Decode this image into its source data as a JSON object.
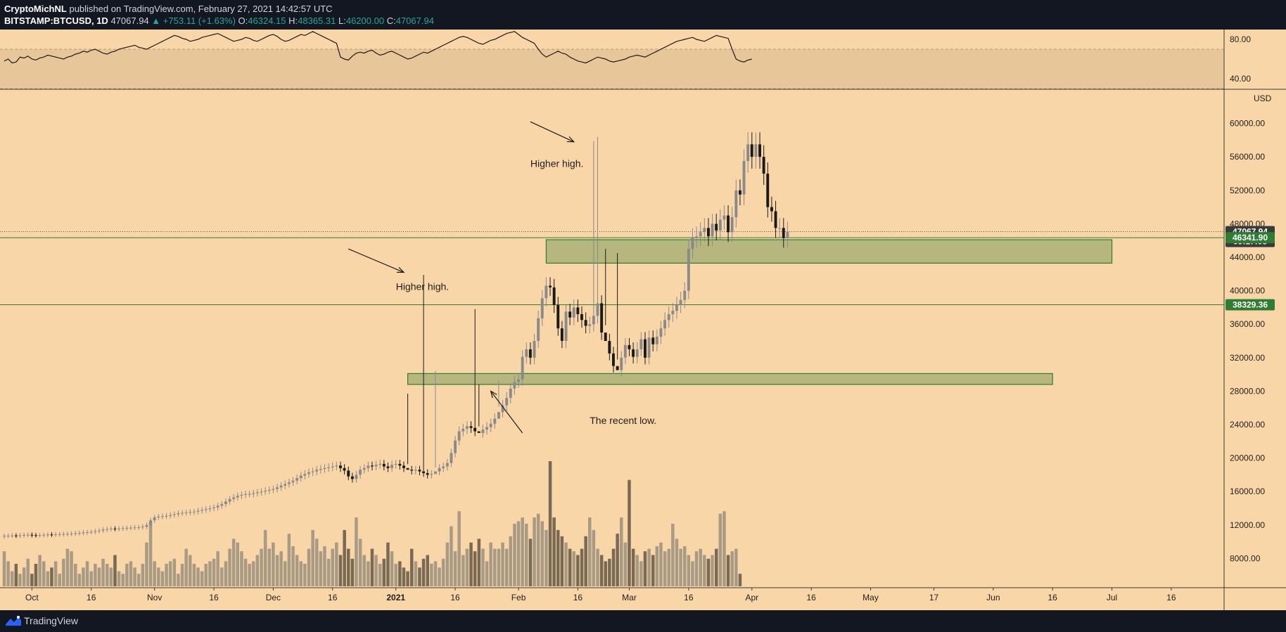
{
  "header": {
    "author": "CryptoMichNL",
    "published_text": "published on TradingView.com, February 27, 2021 14:42:57 UTC",
    "symbol": "BITSTAMP:BTCUSD, 1D",
    "last": "47067.94",
    "change": "+753.11 (+1.63%)",
    "o_label": "O:",
    "o_value": "46324.15",
    "h_label": "H:",
    "h_value": "48365.31",
    "l_label": "L:",
    "l_value": "46200.00",
    "c_label": "C:",
    "c_value": "47067.94"
  },
  "footer": {
    "brand": "TradingView"
  },
  "colors": {
    "background": "#f8d6a7",
    "rsi_band": "#e7c69a",
    "zone_fill": "#b5b77e",
    "zone_border": "#2e7d32",
    "candle_up": "#8a8a8a",
    "candle_down": "#1a1a1a",
    "volume": "#7a6a55",
    "price_tag_green": "#2e7d32",
    "price_tag_dark": "#3a3a3a"
  },
  "chart_data": {
    "type": "candlestick",
    "symbol": "BITSTAMP:BTCUSD",
    "interval": "1D",
    "currency": "USD",
    "ylim": [
      4500,
      64000
    ],
    "y_ticks": [
      8000,
      12000,
      16000,
      20000,
      24000,
      28000,
      32000,
      36000,
      40000,
      44000,
      48000,
      52000,
      56000,
      60000
    ],
    "y_tick_labels": [
      "8000.00",
      "12000.00",
      "16000.00",
      "20000.00",
      "24000.00",
      "28000.00",
      "32000.00",
      "36000.00",
      "40000.00",
      "44000.00",
      "48000.00",
      "52000.00",
      "56000.00",
      "60000.00"
    ],
    "x_range": [
      "2020-09-24",
      "2021-07-29"
    ],
    "x_ticks": [
      {
        "date": "2020-10-01",
        "label": "Oct"
      },
      {
        "date": "2020-10-16",
        "label": "16"
      },
      {
        "date": "2020-11-01",
        "label": "Nov"
      },
      {
        "date": "2020-11-16",
        "label": "16"
      },
      {
        "date": "2020-12-01",
        "label": "Dec"
      },
      {
        "date": "2020-12-16",
        "label": "16"
      },
      {
        "date": "2021-01-01",
        "label": "2021"
      },
      {
        "date": "2021-01-16",
        "label": "16"
      },
      {
        "date": "2021-02-01",
        "label": "Feb"
      },
      {
        "date": "2021-02-16",
        "label": "16"
      },
      {
        "date": "2021-03-01",
        "label": "Mar"
      },
      {
        "date": "2021-03-16",
        "label": "16"
      },
      {
        "date": "2021-04-01",
        "label": "Apr"
      },
      {
        "date": "2021-04-16",
        "label": "16"
      },
      {
        "date": "2021-05-01",
        "label": "May"
      },
      {
        "date": "2021-05-17",
        "label": "17"
      },
      {
        "date": "2021-06-01",
        "label": "Jun"
      },
      {
        "date": "2021-06-16",
        "label": "16"
      },
      {
        "date": "2021-07-01",
        "label": "Jul"
      },
      {
        "date": "2021-07-16",
        "label": "16"
      }
    ],
    "price_series": {
      "start_date": "2020-09-24",
      "interval_days": 1,
      "close": [
        10700,
        10720,
        10740,
        10710,
        10760,
        10800,
        10830,
        10780,
        10760,
        10790,
        10820,
        10860,
        10850,
        10880,
        10890,
        10920,
        10940,
        10960,
        11010,
        11050,
        11100,
        11150,
        11180,
        11260,
        11340,
        11460,
        11510,
        11560,
        11520,
        11580,
        11600,
        11650,
        11680,
        11710,
        11730,
        11800,
        12000,
        12550,
        12900,
        13000,
        13050,
        13100,
        13200,
        13280,
        13400,
        13450,
        13500,
        13550,
        13600,
        13700,
        13800,
        13900,
        14000,
        14100,
        14300,
        14500,
        14800,
        15100,
        15300,
        15500,
        15600,
        15700,
        15700,
        15800,
        15900,
        16000,
        16100,
        16200,
        16300,
        16500,
        16700,
        16900,
        17100,
        17300,
        17600,
        17900,
        18100,
        18300,
        18400,
        18600,
        18700,
        18800,
        18900,
        19000,
        19100,
        18800,
        18500,
        17800,
        17500,
        18000,
        18600,
        18800,
        19100,
        19000,
        19200,
        19300,
        19000,
        18800,
        19200,
        19300,
        19100,
        18800,
        18600,
        18500,
        18600,
        18400,
        18200,
        18000,
        18100,
        18400,
        18800,
        19000,
        19400,
        20600,
        22100,
        23200,
        23500,
        23800,
        23600,
        23200,
        23000,
        23400,
        23700,
        24100,
        24700,
        25500,
        26300,
        27200,
        28300,
        29100,
        29400,
        32100,
        33000,
        32000,
        34000,
        36700,
        39100,
        40600,
        40400,
        38300,
        35500,
        34000,
        37500,
        36800,
        38000,
        37200,
        36500,
        35800,
        36000,
        37000,
        38500,
        35000,
        34000,
        32500,
        31000,
        30500,
        32000,
        33500,
        33000,
        32100,
        33000,
        34200,
        32000,
        34400,
        33600,
        34500,
        35500,
        36500,
        37200,
        37600,
        38300,
        38900,
        40000,
        45000,
        46300,
        46500,
        47000,
        47500,
        46500,
        48000,
        47200,
        48500,
        49000,
        47000,
        48800,
        52000,
        51500,
        55500,
        57500,
        56000,
        57500,
        56000,
        54000,
        50000,
        49500,
        47500,
        47500,
        46300,
        47068
      ],
      "open": [
        10620,
        10700,
        10720,
        10740,
        10710,
        10760,
        10800,
        10830,
        10780,
        10760,
        10790,
        10820,
        10860,
        10850,
        10880,
        10890,
        10920,
        10940,
        10960,
        11010,
        11050,
        11100,
        11150,
        11180,
        11260,
        11340,
        11460,
        11510,
        11560,
        11520,
        11580,
        11600,
        11650,
        11680,
        11710,
        11730,
        11800,
        12000,
        12550,
        12900,
        13000,
        13050,
        13100,
        13200,
        13280,
        13400,
        13450,
        13500,
        13550,
        13600,
        13700,
        13800,
        13900,
        14000,
        14100,
        14300,
        14500,
        14800,
        15100,
        15300,
        15500,
        15600,
        15700,
        15700,
        15800,
        15900,
        16000,
        16100,
        16200,
        16300,
        16500,
        16700,
        16900,
        17100,
        17300,
        17600,
        17900,
        18100,
        18300,
        18400,
        18600,
        18700,
        18800,
        18900,
        19000,
        19100,
        18800,
        18500,
        17800,
        17500,
        18000,
        18600,
        18800,
        19100,
        19000,
        19200,
        19300,
        19000,
        18800,
        19200,
        19300,
        19100,
        18800,
        18600,
        18500,
        18600,
        18400,
        18200,
        18000,
        18100,
        18400,
        18800,
        19000,
        19400,
        20600,
        22100,
        23200,
        23500,
        23800,
        23600,
        23200,
        23000,
        23400,
        23700,
        24100,
        24700,
        25500,
        26300,
        27200,
        28300,
        29100,
        29400,
        32100,
        33000,
        32000,
        34000,
        36700,
        39100,
        40600,
        40400,
        38300,
        35500,
        34000,
        37500,
        36800,
        38000,
        37200,
        36500,
        35800,
        36000,
        37000,
        38500,
        35000,
        34000,
        32500,
        31000,
        30500,
        32000,
        33500,
        33000,
        32100,
        33000,
        34200,
        32000,
        34400,
        33600,
        34500,
        35500,
        36500,
        37200,
        37600,
        38300,
        38900,
        40000,
        45000,
        46300,
        46500,
        47000,
        47500,
        46500,
        48000,
        47200,
        48500,
        49000,
        47000,
        48800,
        52000,
        51500,
        55500,
        57500,
        56000,
        57500,
        56000,
        54000,
        50000,
        49500,
        47500,
        47500,
        46324
      ],
      "high_low_notes": "Candle wicks estimated from chart",
      "highs": {
        "2021-01-08": 41900,
        "2021-02-21": 58400,
        "2021-02-20": 57900,
        "2021-01-21": 37800
      },
      "lows": {
        "2021-01-04": 27700,
        "2021-01-22": 28800,
        "2021-01-27": 29200,
        "2021-02-23": 45000,
        "2021-02-26": 44500,
        "2021-01-11": 30400
      }
    },
    "volume": {
      "note": "Relative daily volume heights (0-1), estimated",
      "values": [
        0.28,
        0.2,
        0.12,
        0.18,
        0.1,
        0.15,
        0.22,
        0.1,
        0.18,
        0.25,
        0.2,
        0.12,
        0.15,
        0.2,
        0.1,
        0.22,
        0.3,
        0.28,
        0.18,
        0.1,
        0.15,
        0.2,
        0.12,
        0.18,
        0.15,
        0.22,
        0.18,
        0.15,
        0.25,
        0.12,
        0.1,
        0.18,
        0.2,
        0.15,
        0.1,
        0.18,
        0.35,
        0.52,
        0.2,
        0.15,
        0.12,
        0.18,
        0.2,
        0.22,
        0.1,
        0.18,
        0.3,
        0.25,
        0.18,
        0.15,
        0.12,
        0.18,
        0.2,
        0.22,
        0.28,
        0.15,
        0.2,
        0.3,
        0.38,
        0.35,
        0.28,
        0.22,
        0.18,
        0.2,
        0.25,
        0.3,
        0.45,
        0.3,
        0.35,
        0.25,
        0.28,
        0.2,
        0.42,
        0.32,
        0.25,
        0.2,
        0.18,
        0.3,
        0.45,
        0.38,
        0.28,
        0.32,
        0.22,
        0.3,
        0.35,
        0.25,
        0.45,
        0.3,
        0.22,
        0.55,
        0.38,
        0.25,
        0.2,
        0.3,
        0.25,
        0.18,
        0.22,
        0.35,
        0.28,
        0.18,
        0.2,
        0.15,
        0.12,
        0.3,
        0.2,
        0.15,
        0.22,
        0.25,
        0.18,
        0.2,
        0.15,
        0.22,
        0.35,
        0.48,
        0.28,
        0.6,
        0.25,
        0.3,
        0.35,
        0.28,
        0.38,
        0.3,
        0.2,
        0.35,
        0.3,
        0.3,
        0.35,
        0.3,
        0.4,
        0.5,
        0.52,
        0.55,
        0.5,
        0.38,
        0.55,
        0.58,
        0.52,
        0.45,
        1.0,
        0.55,
        0.45,
        0.4,
        0.35,
        0.3,
        0.28,
        0.25,
        0.3,
        0.4,
        0.55,
        0.45,
        0.3,
        0.25,
        0.2,
        0.22,
        0.3,
        0.42,
        0.55,
        0.35,
        0.85,
        0.3,
        0.25,
        0.2,
        0.28,
        0.3,
        0.25,
        0.32,
        0.35,
        0.28,
        0.3,
        0.5,
        0.38,
        0.3,
        0.32,
        0.25,
        0.2,
        0.28,
        0.3,
        0.25,
        0.22,
        0.25,
        0.3,
        0.58,
        0.6,
        0.25,
        0.28,
        0.3,
        0.1
      ]
    },
    "rsi": {
      "ylim": [
        30,
        90
      ],
      "y_ticks": [
        40,
        80
      ],
      "y_tick_labels": [
        "40.00",
        "80.00"
      ],
      "band": [
        30,
        70
      ],
      "values": [
        58,
        60,
        56,
        57,
        62,
        61,
        63,
        60,
        59,
        61,
        62,
        64,
        63,
        62,
        61,
        60,
        62,
        63,
        65,
        66,
        68,
        67,
        69,
        70,
        68,
        66,
        65,
        67,
        68,
        70,
        71,
        72,
        73,
        74,
        72,
        71,
        70,
        72,
        74,
        76,
        78,
        80,
        82,
        84,
        83,
        81,
        80,
        78,
        79,
        80,
        82,
        83,
        84,
        85,
        86,
        84,
        82,
        80,
        78,
        79,
        80,
        82,
        81,
        79,
        78,
        80,
        82,
        84,
        85,
        83,
        80,
        78,
        79,
        81,
        83,
        85,
        84,
        86,
        88,
        86,
        84,
        82,
        80,
        78,
        76,
        62,
        60,
        59,
        63,
        66,
        67,
        66,
        68,
        69,
        66,
        64,
        65,
        67,
        68,
        66,
        64,
        62,
        60,
        61,
        63,
        65,
        67,
        66,
        68,
        70,
        72,
        74,
        76,
        78,
        80,
        82,
        83,
        82,
        80,
        78,
        76,
        75,
        77,
        79,
        80,
        82,
        84,
        86,
        87,
        88,
        85,
        82,
        80,
        78,
        76,
        70,
        65,
        62,
        64,
        66,
        68,
        66,
        65,
        62,
        60,
        58,
        57,
        56,
        58,
        60,
        62,
        61,
        60,
        58,
        57,
        58,
        59,
        60,
        62,
        63,
        64,
        63,
        62,
        64,
        66,
        68,
        70,
        72,
        74,
        76,
        78,
        79,
        80,
        81,
        82,
        80,
        79,
        78,
        80,
        82,
        84,
        83,
        82,
        81,
        70,
        60,
        58,
        57,
        59,
        60
      ],
      "note": "RSI values estimated from chart"
    },
    "horizontal_levels": [
      {
        "price": 47067.94,
        "style": "dotted",
        "label": "47067.94",
        "sublabel": "09:17:05"
      },
      {
        "price": 46341.9,
        "style": "solid",
        "label": "46341.90"
      },
      {
        "price": 38329.36,
        "style": "solid",
        "label": "38329.36"
      }
    ],
    "zones": [
      {
        "start": "2021-02-08",
        "end": "2021-07-01",
        "low": 43300,
        "high": 46100
      },
      {
        "start": "2021-01-04",
        "end": "2021-06-16",
        "low": 28800,
        "high": 30100
      }
    ],
    "annotations": [
      {
        "text": "Higher high.",
        "date": "2021-01-01",
        "price": 40100
      },
      {
        "text": "Higher high.",
        "date": "2021-02-04",
        "price": 54800
      },
      {
        "text": "The recent low.",
        "date": "2021-02-19",
        "price": 24100
      }
    ],
    "arrows": [
      {
        "from_date": "2020-12-20",
        "from_price": 45000,
        "to_date": "2021-01-03",
        "to_price": 42200
      },
      {
        "from_date": "2021-02-04",
        "from_price": 60200,
        "to_date": "2021-02-15",
        "to_price": 57800
      },
      {
        "from_date": "2021-02-02",
        "from_price": 23000,
        "to_date": "2021-01-25",
        "to_price": 28000
      }
    ]
  }
}
